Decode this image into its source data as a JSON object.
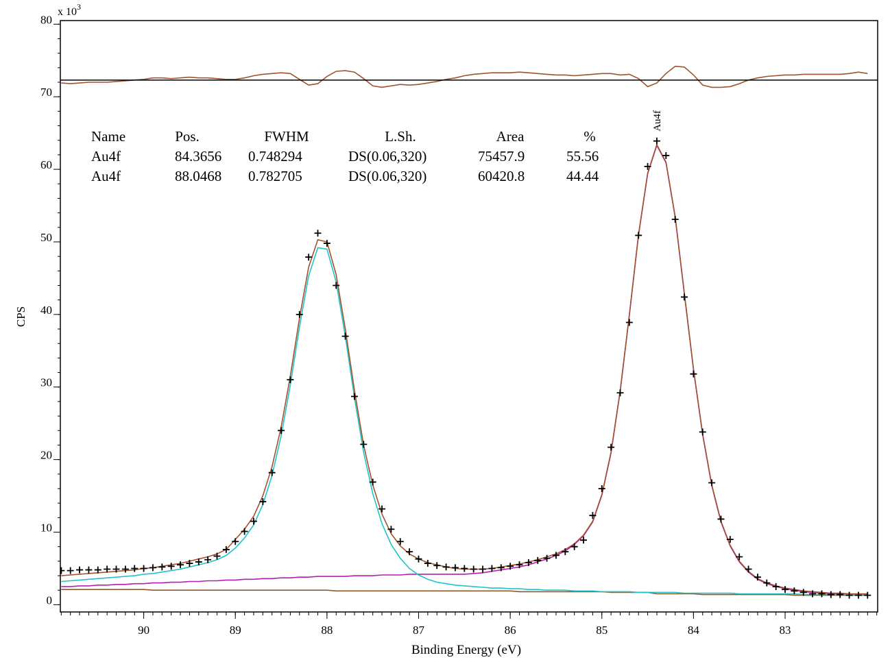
{
  "chart_data": {
    "type": "line",
    "xlabel": "Binding Energy (eV)",
    "ylabel": "CPS",
    "y_multiplier": {
      "base": "x 10",
      "exponent": "3"
    },
    "xlim": [
      90.91,
      81.99
    ],
    "ylim": [
      -1,
      80.5
    ],
    "xticks": [
      90,
      89,
      88,
      87,
      86,
      85,
      84,
      83
    ],
    "yticks": [
      0,
      10,
      20,
      30,
      40,
      50,
      60,
      70,
      80
    ],
    "x_minor_step": 0.1,
    "y_minor_step": 2,
    "x": [
      90.9,
      90.8,
      90.7,
      90.6,
      90.5,
      90.4,
      90.3,
      90.2,
      90.1,
      90.0,
      89.9,
      89.8,
      89.7,
      89.6,
      89.5,
      89.4,
      89.3,
      89.2,
      89.1,
      89.0,
      88.9,
      88.8,
      88.7,
      88.6,
      88.5,
      88.4,
      88.3,
      88.2,
      88.1,
      88.0,
      87.9,
      87.8,
      87.7,
      87.6,
      87.5,
      87.4,
      87.3,
      87.2,
      87.1,
      87.0,
      86.9,
      86.8,
      86.7,
      86.6,
      86.5,
      86.4,
      86.3,
      86.2,
      86.1,
      86.0,
      85.9,
      85.8,
      85.7,
      85.6,
      85.5,
      85.4,
      85.3,
      85.2,
      85.1,
      85.0,
      84.9,
      84.8,
      84.7,
      84.6,
      84.5,
      84.4,
      84.3,
      84.2,
      84.1,
      84.0,
      83.9,
      83.8,
      83.7,
      83.6,
      83.5,
      83.4,
      83.3,
      83.2,
      83.1,
      83.0,
      82.9,
      82.8,
      82.7,
      82.6,
      82.5,
      82.4,
      82.3,
      82.2,
      82.1
    ],
    "series": [
      {
        "color": "#8b5a2b",
        "values": [
          2.1,
          2.1,
          2.1,
          2.1,
          2.1,
          2.1,
          2.1,
          2.1,
          2.1,
          2.1,
          2.0,
          2.0,
          2.0,
          2.0,
          2.0,
          2.0,
          2.0,
          2.0,
          2.0,
          2.0,
          2.0,
          2.0,
          2.0,
          2.0,
          2.0,
          2.0,
          2.0,
          2.0,
          2.0,
          2.0,
          1.9,
          1.9,
          1.9,
          1.9,
          1.9,
          1.9,
          1.9,
          1.9,
          1.9,
          1.9,
          1.9,
          1.9,
          1.9,
          1.9,
          1.9,
          1.9,
          1.9,
          1.9,
          1.9,
          1.9,
          1.8,
          1.8,
          1.8,
          1.8,
          1.8,
          1.8,
          1.8,
          1.8,
          1.8,
          1.8,
          1.7,
          1.7,
          1.7,
          1.7,
          1.7,
          1.5,
          1.5,
          1.5,
          1.5,
          1.5,
          1.4,
          1.4,
          1.4,
          1.4,
          1.4,
          1.4,
          1.4,
          1.4,
          1.4,
          1.4,
          1.3,
          1.3,
          1.3,
          1.3,
          1.3,
          1.3,
          1.3,
          1.3,
          1.3
        ]
      },
      {
        "color": "#b21fb2",
        "values": [
          2.5,
          2.5,
          2.6,
          2.6,
          2.7,
          2.7,
          2.8,
          2.8,
          2.9,
          2.9,
          3.0,
          3.0,
          3.1,
          3.1,
          3.2,
          3.2,
          3.3,
          3.3,
          3.4,
          3.4,
          3.5,
          3.5,
          3.6,
          3.6,
          3.7,
          3.7,
          3.8,
          3.8,
          3.9,
          3.9,
          3.9,
          3.9,
          4.0,
          4.0,
          4.0,
          4.1,
          4.1,
          4.1,
          4.2,
          4.2,
          4.2,
          4.2,
          4.2,
          4.2,
          4.2,
          4.3,
          4.4,
          4.6,
          4.8,
          5.0,
          5.2,
          5.5,
          5.9,
          6.3,
          6.8,
          7.4,
          8.3,
          9.5,
          11.4,
          15.1,
          20.9,
          29.4,
          39.9,
          50.9,
          59.4,
          63.3,
          60.9,
          53.4,
          42.9,
          32.4,
          23.4,
          16.4,
          11.4,
          8.1,
          5.9,
          4.5,
          3.5,
          2.9,
          2.5,
          2.2,
          2.0,
          1.8,
          1.7,
          1.6,
          1.5,
          1.5,
          1.4,
          1.4,
          1.4
        ]
      },
      {
        "color": "#1fc4c8",
        "values": [
          3.2,
          3.3,
          3.4,
          3.5,
          3.6,
          3.7,
          3.8,
          3.9,
          4.0,
          4.2,
          4.3,
          4.5,
          4.7,
          4.9,
          5.2,
          5.5,
          5.8,
          6.2,
          6.8,
          7.8,
          9.2,
          11.0,
          13.8,
          17.8,
          23.3,
          30.3,
          38.3,
          45.3,
          49.2,
          49.0,
          44.5,
          37.0,
          28.5,
          21.0,
          15.3,
          11.2,
          8.3,
          6.4,
          5.0,
          4.1,
          3.5,
          3.1,
          2.9,
          2.7,
          2.6,
          2.5,
          2.4,
          2.3,
          2.3,
          2.2,
          2.2,
          2.1,
          2.1,
          2.0,
          2.0,
          2.0,
          1.9,
          1.9,
          1.9,
          1.8,
          1.8,
          1.8,
          1.8,
          1.7,
          1.7,
          1.7,
          1.7,
          1.7,
          1.6,
          1.6,
          1.6,
          1.6,
          1.6,
          1.6,
          1.5,
          1.5,
          1.5,
          1.5,
          1.5,
          1.5,
          1.5,
          1.4,
          1.4,
          1.4,
          1.4,
          1.4,
          1.4,
          1.4,
          1.4
        ]
      },
      {
        "color": "#a0522d",
        "values": [
          4.0,
          4.1,
          4.2,
          4.3,
          4.4,
          4.5,
          4.6,
          4.7,
          4.8,
          5.0,
          5.1,
          5.3,
          5.5,
          5.7,
          6.0,
          6.3,
          6.6,
          7.0,
          7.6,
          9.0,
          10.4,
          12.2,
          15.0,
          19.0,
          24.5,
          31.5,
          39.5,
          46.5,
          50.3,
          50.0,
          45.5,
          38.0,
          29.5,
          22.0,
          16.5,
          12.5,
          9.8,
          8.1,
          7.0,
          6.3,
          5.8,
          5.5,
          5.2,
          5.0,
          4.9,
          4.9,
          4.9,
          5.0,
          5.2,
          5.4,
          5.6,
          5.9,
          6.2,
          6.6,
          7.0,
          7.6,
          8.4,
          9.6,
          11.5,
          15.2,
          21.0,
          29.5,
          40.0,
          51.0,
          59.5,
          63.4,
          61.0,
          53.5,
          43.0,
          32.5,
          23.5,
          16.5,
          11.5,
          8.2,
          6.0,
          4.6,
          3.6,
          3.0,
          2.6,
          2.3,
          2.1,
          1.9,
          1.8,
          1.7,
          1.6,
          1.6,
          1.5,
          1.5,
          1.5
        ]
      },
      {
        "color": "#000000",
        "marker": "+",
        "values": [
          4.7,
          4.7,
          4.8,
          4.8,
          4.8,
          4.9,
          4.9,
          4.9,
          5.0,
          5.0,
          5.1,
          5.2,
          5.3,
          5.5,
          5.7,
          5.9,
          6.2,
          6.7,
          7.6,
          8.7,
          10.1,
          11.5,
          14.2,
          18.2,
          24.0,
          31.0,
          40.0,
          47.9,
          51.2,
          49.8,
          44.0,
          37.0,
          28.7,
          22.1,
          16.9,
          13.2,
          10.4,
          8.7,
          7.3,
          6.3,
          5.7,
          5.4,
          5.2,
          5.1,
          5.0,
          4.9,
          4.9,
          5.0,
          5.1,
          5.3,
          5.5,
          5.8,
          6.1,
          6.4,
          6.8,
          7.3,
          8.0,
          8.9,
          12.3,
          16.0,
          21.7,
          29.2,
          38.9,
          50.9,
          60.4,
          63.9,
          61.9,
          53.1,
          42.4,
          31.8,
          23.8,
          16.8,
          11.8,
          9.0,
          6.6,
          4.9,
          3.8,
          3.0,
          2.5,
          2.1,
          1.9,
          1.7,
          1.5,
          1.5,
          1.4,
          1.4,
          1.3,
          1.3,
          1.3
        ]
      },
      {
        "color": "#a0522d",
        "values": [
          71.9,
          71.8,
          71.9,
          72.0,
          72.0,
          72.0,
          72.1,
          72.2,
          72.3,
          72.4,
          72.6,
          72.6,
          72.5,
          72.6,
          72.7,
          72.6,
          72.6,
          72.5,
          72.4,
          72.4,
          72.6,
          72.9,
          73.1,
          73.2,
          73.3,
          73.2,
          72.4,
          71.6,
          71.8,
          72.8,
          73.5,
          73.6,
          73.4,
          72.5,
          71.5,
          71.3,
          71.5,
          71.7,
          71.6,
          71.7,
          71.9,
          72.1,
          72.4,
          72.6,
          72.9,
          73.1,
          73.2,
          73.3,
          73.3,
          73.3,
          73.4,
          73.3,
          73.2,
          73.1,
          73.0,
          73.0,
          72.9,
          73.0,
          73.1,
          73.2,
          73.2,
          73.0,
          73.1,
          72.5,
          71.4,
          71.9,
          73.2,
          74.2,
          74.1,
          73.0,
          71.6,
          71.3,
          71.3,
          71.4,
          71.8,
          72.3,
          72.6,
          72.8,
          72.9,
          73.0,
          73.0,
          73.1,
          73.1,
          73.1,
          73.1,
          73.1,
          73.2,
          73.4,
          73.2
        ]
      }
    ],
    "hlines": [
      {
        "value": 72.3,
        "color": "#000000"
      }
    ],
    "annotations": [
      {
        "text": "Au4f",
        "x": 84.4,
        "y": 63.9
      }
    ],
    "components_table": {
      "columns": [
        "Name",
        "Pos.",
        "FWHM",
        "L.Sh.",
        "Area",
        "%"
      ],
      "rows": [
        [
          "Au4f",
          "84.3656",
          "0.748294",
          "DS(0.06,320)",
          "75457.9",
          "55.56"
        ],
        [
          "Au4f",
          "88.0468",
          "0.782705",
          "DS(0.06,320)",
          "60420.8",
          "44.44"
        ]
      ],
      "row_colors": [
        "#b21fb2",
        "#1fc4c8"
      ]
    }
  }
}
